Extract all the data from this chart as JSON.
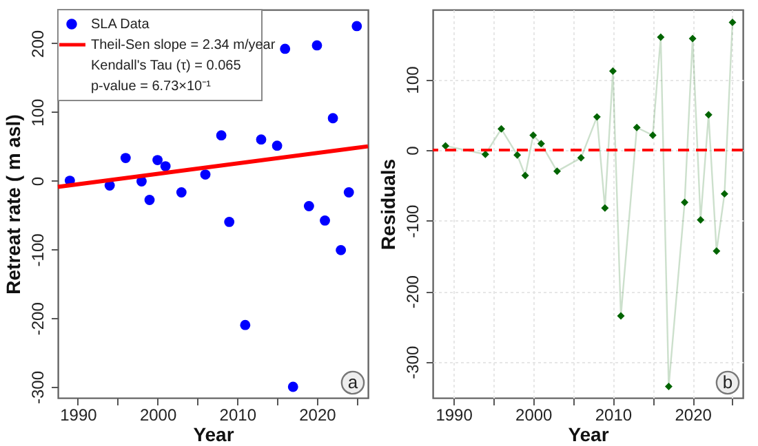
{
  "chart_data": [
    {
      "type": "scatter",
      "xlabel": "Year",
      "ylabel": "Retreat rate ( m asl)",
      "xlim": [
        1987.5,
        2026.4
      ],
      "ylim": [
        -316,
        249
      ],
      "xticks": [
        1990,
        {
          "value": 1995,
          "label": null
        },
        2000,
        {
          "value": 2005,
          "label": null
        },
        2010,
        {
          "value": 2015,
          "label": null
        },
        2020,
        {
          "value": 2025,
          "label": null
        }
      ],
      "yticks": [
        -300,
        -200,
        -100,
        0,
        100,
        200
      ],
      "legend": "top left",
      "marker": "circle",
      "series": [
        {
          "name": "SLA Data",
          "color": "#0000ff",
          "x": [
            1989,
            1994,
            1996,
            1998,
            1999,
            2000,
            2001,
            2003,
            2006,
            2008,
            2009,
            2011,
            2013,
            2015,
            2016,
            2017,
            2019,
            2020,
            2021,
            2022,
            2023,
            2024,
            2025
          ],
          "values": [
            0,
            -7,
            33,
            -1,
            -28,
            30,
            21,
            -17,
            9,
            66,
            -60,
            -210,
            60,
            51,
            192,
            -300,
            -37,
            197,
            -58,
            91,
            -101,
            -17,
            225
          ]
        },
        {
          "name": "Theil-Sen slope = 2.34 m/year",
          "type": "line",
          "marker": "none",
          "color": "#ff0000",
          "x": [
            1987.5,
            2026.4
          ],
          "values": [
            -9,
            50
          ]
        }
      ],
      "annotations": [
        "Kendall's Tau (τ) = 0.065",
        "p-value = 6.73×10⁻¹",
        "a"
      ]
    },
    {
      "type": "line",
      "xlabel": "Year",
      "ylabel": "Residuals",
      "xlim": [
        1987.4,
        2026.3
      ],
      "ylim": [
        -351,
        199
      ],
      "xticks": [
        1990,
        {
          "value": 1995,
          "label": null
        },
        2000,
        {
          "value": 2005,
          "label": null
        },
        2010,
        {
          "value": 2015,
          "label": null
        },
        2020,
        {
          "value": 2025,
          "label": null
        }
      ],
      "yticks": [
        -300,
        -200,
        -100,
        0,
        100
      ],
      "grid": true,
      "marker": "diamond",
      "series": [
        {
          "color": "#006400",
          "x": [
            1989,
            1994,
            1996,
            1998,
            1999,
            2000,
            2001,
            2003,
            2006,
            2008,
            2009,
            2010,
            2011,
            2013,
            2015,
            2016,
            2017,
            2019,
            2020,
            2021,
            2022,
            2023,
            2024,
            2025
          ],
          "values": [
            6,
            -6,
            30,
            -7,
            -36,
            21,
            9,
            -30,
            -11,
            47,
            -82,
            112,
            -235,
            32,
            21,
            160,
            -335,
            -74,
            158,
            -99,
            50,
            -143,
            -62,
            181
          ]
        }
      ],
      "ref_lines": [
        {
          "axis": "y",
          "value": 0,
          "color": "#ff0000",
          "line_style": "dashed"
        }
      ],
      "annotations": [
        "b"
      ]
    }
  ]
}
